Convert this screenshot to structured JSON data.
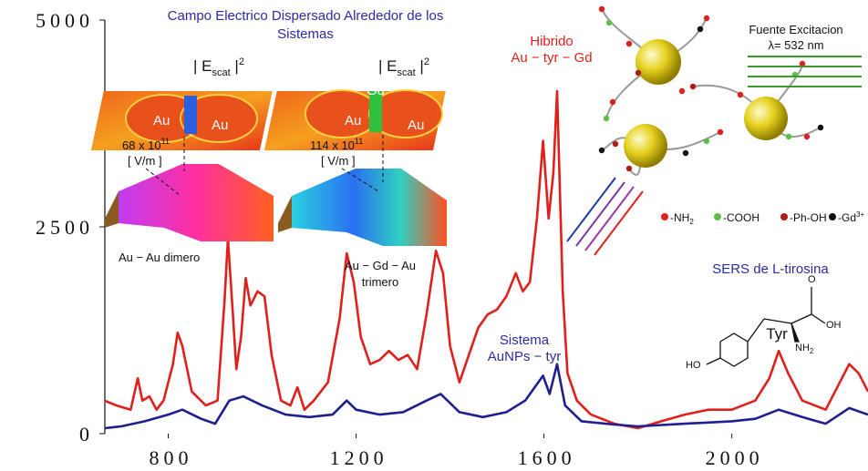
{
  "chart_data": {
    "type": "line",
    "xlim": [
      665,
      2290
    ],
    "xticks": [
      800,
      1200,
      1600,
      2000
    ],
    "ylim": [
      0,
      5000
    ],
    "yticks": [
      0,
      2500,
      5000
    ],
    "series": [
      {
        "label": [
          "Hibrido",
          "Au − tyr − Gd"
        ],
        "color": "#e0201c",
        "x": [
          665,
          690,
          720,
          735,
          745,
          760,
          775,
          790,
          810,
          820,
          830,
          850,
          880,
          905,
          920,
          927,
          937,
          945,
          955,
          965,
          975,
          990,
          1005,
          1020,
          1040,
          1060,
          1075,
          1090,
          1110,
          1140,
          1165,
          1180,
          1195,
          1210,
          1230,
          1250,
          1270,
          1290,
          1310,
          1330,
          1350,
          1370,
          1385,
          1400,
          1420,
          1440,
          1460,
          1480,
          1500,
          1520,
          1540,
          1555,
          1570,
          1585,
          1598,
          1610,
          1620,
          1628,
          1640,
          1650,
          1670,
          1700,
          1750,
          1800,
          1850,
          1900,
          1950,
          2000,
          2050,
          2080,
          2100,
          2120,
          2150,
          2200,
          2230,
          2250,
          2270,
          2290
        ],
        "values": [
          396,
          340,
          290,
          670,
          400,
          450,
          290,
          400,
          840,
          1220,
          1060,
          510,
          340,
          400,
          1610,
          2360,
          1500,
          780,
          1170,
          1880,
          1550,
          1720,
          1660,
          950,
          400,
          340,
          560,
          290,
          400,
          620,
          1390,
          2180,
          1830,
          1170,
          840,
          890,
          1000,
          890,
          950,
          780,
          1440,
          2210,
          1940,
          1060,
          620,
          950,
          1280,
          1440,
          1500,
          1660,
          1940,
          1720,
          1830,
          2600,
          3540,
          2600,
          3150,
          4140,
          1720,
          730,
          400,
          230,
          120,
          66,
          150,
          230,
          290,
          290,
          400,
          670,
          1000,
          730,
          400,
          290,
          620,
          840,
          730,
          510
        ]
      },
      {
        "label": [
          "Sistema",
          "AuNPs − tyr"
        ],
        "color": "#1f1f8f",
        "x": [
          665,
          700,
          750,
          800,
          830,
          870,
          900,
          930,
          960,
          1000,
          1050,
          1100,
          1150,
          1180,
          1200,
          1250,
          1300,
          1350,
          1380,
          1420,
          1470,
          1520,
          1560,
          1598,
          1612,
          1628,
          1645,
          1680,
          1750,
          1800,
          1900,
          2000,
          2050,
          2100,
          2150,
          2200,
          2250,
          2290
        ],
        "values": [
          66,
          88,
          150,
          230,
          290,
          180,
          120,
          400,
          450,
          340,
          230,
          200,
          230,
          400,
          290,
          230,
          260,
          400,
          480,
          260,
          200,
          260,
          400,
          700,
          480,
          840,
          340,
          150,
          110,
          88,
          120,
          150,
          180,
          290,
          200,
          120,
          310,
          230
        ]
      }
    ],
    "annotations": {
      "field_title": [
        "Campo Electrico Dispersado Alrededor de los",
        "Sistemas"
      ],
      "escat": {
        "left": "| E",
        "sub": "scat",
        "right": " |",
        "sup": "2"
      },
      "dimer_labels": [
        "Au",
        "Au"
      ],
      "trimer_labels": [
        "Au",
        "Gd",
        "Au"
      ],
      "dimer_field": {
        "value": "68 x 10",
        "sup": "11",
        "unit": "[ V/m ]"
      },
      "trimer_field": {
        "value": "114 x 10",
        "sup": "11",
        "unit": "[ V/m ]"
      },
      "dimer_caption": [
        "Au − Au dimero"
      ],
      "trimer_caption": [
        "Au − Gd − Au",
        "trimero"
      ],
      "source": [
        "Fuente Excitacion",
        "λ= 532 nm"
      ],
      "groups": [
        {
          "label": "-NH",
          "sub": "2",
          "color": "#e0201c"
        },
        {
          "label": "-COOH",
          "color": "#5cbf4a"
        },
        {
          "label": "-Ph-OH",
          "color": "#b01c1c"
        },
        {
          "label": "-Gd",
          "sup": "3+",
          "color": "#111111"
        }
      ],
      "sers_title": "SERS de L-tirosina",
      "molecule": {
        "name": "Tyr",
        "amine": "NH",
        "amine_sub": "2",
        "hydroxyl": "OH",
        "oxo": "O",
        "phenol": "HO"
      }
    }
  }
}
